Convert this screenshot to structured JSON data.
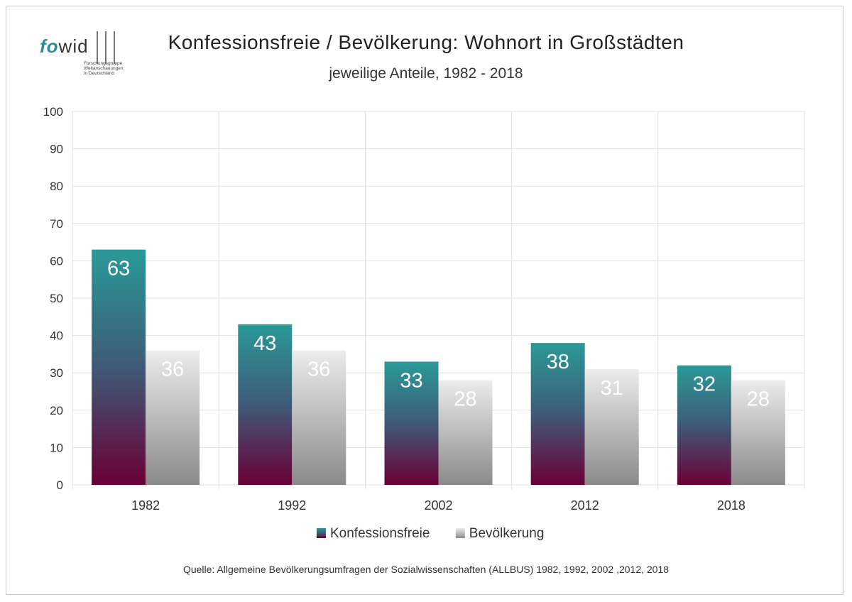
{
  "logo": {
    "brand_fo": "fo",
    "brand_wid": "wid",
    "subtitle_lines": [
      "Forschungsgruppe",
      "Weltanschauungen",
      "in Deutschland"
    ]
  },
  "title": "Konfessionsfreie / Bevölkerung: Wohnort in Großstädten",
  "subtitle": "jeweilige Anteile, 1982 - 2018",
  "source": "Quelle: Allgemeine Bevölkerungsumfragen der Sozialwissenschaften (ALLBUS) 1982, 1992, 2002 ,2012, 2018",
  "colors": {
    "konf_top": "#2a9a98",
    "konf_mid": "#3f5a78",
    "konf_bottom": "#6a0035",
    "bev_top": "#ececec",
    "bev_bottom": "#8a8a8a",
    "grid": "#e2e2e2",
    "label_light": "#ffffff"
  },
  "chart_data": {
    "type": "bar",
    "categories": [
      "1982",
      "1992",
      "2002",
      "2012",
      "2018"
    ],
    "series": [
      {
        "name": "Konfessionsfreie",
        "values": [
          63,
          43,
          33,
          38,
          32
        ]
      },
      {
        "name": "Bevölkerung",
        "values": [
          36,
          36,
          28,
          31,
          28
        ]
      }
    ],
    "ylim": [
      0,
      100
    ],
    "yticks": [
      0,
      10,
      20,
      30,
      40,
      50,
      60,
      70,
      80,
      90,
      100
    ],
    "grid": true,
    "legend": "bottom"
  }
}
